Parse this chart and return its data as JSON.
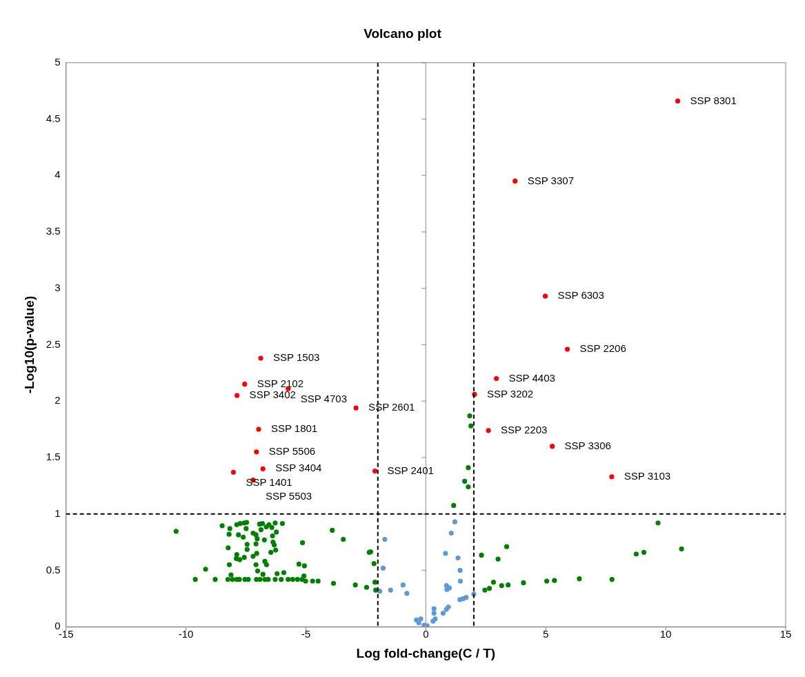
{
  "chart_data": {
    "type": "scatter",
    "title": "Volcano plot",
    "xlabel": "Log fold-change(C / T)",
    "ylabel": "-Log10(p-value)",
    "xlim": [
      -15,
      15
    ],
    "xticks": [
      -15,
      -10,
      -5,
      0,
      5,
      10,
      15
    ],
    "ylim": [
      0,
      5
    ],
    "yticks": [
      0,
      0.5,
      1,
      1.5,
      2,
      2.5,
      3,
      3.5,
      4,
      4.5,
      5
    ],
    "grid": false,
    "legend": false,
    "marker": "circle",
    "series": [
      {
        "color": "#ff0000",
        "x": [
          10.5,
          3.72,
          4.98,
          5.9,
          2.94,
          2.03,
          2.61,
          5.27,
          7.75,
          -6.88,
          -7.55,
          -5.74,
          -7.87,
          -2.91,
          -6.97,
          -7.06,
          -6.79,
          -8.02,
          -7.2,
          -2.12
        ],
        "values": [
          4.66,
          3.95,
          2.93,
          2.46,
          2.2,
          2.06,
          1.74,
          1.6,
          1.33,
          2.38,
          2.15,
          2.11,
          2.05,
          1.94,
          1.75,
          1.55,
          1.4,
          1.37,
          1.3,
          1.38
        ]
      },
      {
        "color": "#008000",
        "x": [
          1.83,
          1.88,
          1.77,
          1.62,
          1.77,
          1.16,
          -8.49,
          -8.17,
          -8.2,
          -8.24,
          -8.19,
          -9.18,
          -9.61,
          -8.78,
          -8.12,
          -8.25,
          -8.06,
          -7.88,
          -7.77,
          -7.54,
          -7.4,
          -7.06,
          -6.91,
          -6.71,
          -6.57,
          -6.28,
          -6.03,
          -5.74,
          -5.55,
          -5.35,
          -5.16,
          -5.01,
          -4.72,
          -4.49,
          -7.88,
          -7.74,
          -7.57,
          -7.47,
          -7.49,
          -6.93,
          -6.81,
          -6.87,
          -6.65,
          -6.54,
          -6.42,
          -6.28,
          -6.23,
          -5.98,
          -7.81,
          -7.61,
          -7.2,
          -7.08,
          -7.03,
          -6.73,
          -6.39,
          -6.37,
          -6.32,
          -7.45,
          -7.45,
          -7.08,
          -7.05,
          -7.2,
          -6.46,
          -6.26,
          -7.88,
          -7.9,
          -7.76,
          -7.57,
          -7.08,
          -6.71,
          -6.64,
          -7.01,
          -6.79,
          -6.2,
          -5.92,
          -5.14,
          -5.29,
          -5.06,
          -5.08,
          -3.9,
          -3.44,
          -3.85,
          -2.36,
          -2.3,
          -2.16,
          -2.94,
          -2.47,
          -2.12,
          -2.09,
          2.32,
          2.46,
          2.65,
          3.37,
          3.01,
          2.82,
          3.16,
          3.43,
          4.07,
          5.04,
          5.36,
          6.4,
          7.76,
          8.77,
          9.09,
          9.68,
          10.66,
          -10.41
        ],
        "values": [
          1.87,
          1.78,
          1.41,
          1.29,
          1.24,
          1.075,
          0.895,
          0.87,
          0.82,
          0.7,
          0.55,
          0.51,
          0.42,
          0.42,
          0.46,
          0.42,
          0.42,
          0.42,
          0.42,
          0.42,
          0.42,
          0.42,
          0.42,
          0.42,
          0.42,
          0.42,
          0.42,
          0.42,
          0.42,
          0.42,
          0.42,
          0.405,
          0.405,
          0.405,
          0.905,
          0.915,
          0.92,
          0.925,
          0.87,
          0.91,
          0.915,
          0.86,
          0.885,
          0.905,
          0.88,
          0.92,
          0.84,
          0.915,
          0.815,
          0.795,
          0.83,
          0.815,
          0.78,
          0.77,
          0.805,
          0.75,
          0.725,
          0.73,
          0.685,
          0.735,
          0.65,
          0.625,
          0.66,
          0.68,
          0.64,
          0.605,
          0.595,
          0.615,
          0.55,
          0.58,
          0.55,
          0.495,
          0.465,
          0.47,
          0.48,
          0.745,
          0.555,
          0.54,
          0.45,
          0.855,
          0.775,
          0.385,
          0.66,
          0.665,
          0.56,
          0.37,
          0.35,
          0.395,
          0.325,
          0.635,
          0.325,
          0.34,
          0.71,
          0.6,
          0.395,
          0.365,
          0.37,
          0.39,
          0.405,
          0.41,
          0.425,
          0.42,
          0.645,
          0.66,
          0.92,
          0.69,
          0.846
        ]
      },
      {
        "color": "#5b9bd5",
        "x": [
          1.21,
          1.06,
          -1.71,
          0.82,
          1.34,
          -1.78,
          1.43,
          1.44,
          -1.92,
          -1.47,
          -0.95,
          -0.79,
          0.86,
          0.88,
          0.98,
          2.0,
          1.42,
          1.56,
          1.68,
          0.94,
          0.86,
          0.72,
          0.34,
          0.34,
          0.39,
          0.3,
          -0.39,
          -0.21,
          -0.29,
          -0.07,
          0.05
        ],
        "values": [
          0.93,
          0.83,
          0.775,
          0.65,
          0.61,
          0.52,
          0.5,
          0.405,
          0.315,
          0.325,
          0.37,
          0.295,
          0.365,
          0.33,
          0.345,
          0.29,
          0.24,
          0.25,
          0.26,
          0.175,
          0.155,
          0.12,
          0.16,
          0.12,
          0.07,
          0.05,
          0.06,
          0.07,
          0.035,
          0.015,
          0.01
        ]
      }
    ],
    "ref_lines": [
      {
        "axis": "x",
        "value": -2,
        "color": "#000000",
        "line_style": "dashed"
      },
      {
        "axis": "x",
        "value": 2,
        "color": "#000000",
        "line_style": "dashed"
      },
      {
        "axis": "y",
        "value": 1,
        "color": "#000000",
        "line_style": "dashed"
      }
    ],
    "annotations": [
      {
        "text": "SSP 8301",
        "x": 10.5,
        "y": 4.66
      },
      {
        "text": "SSP 3307",
        "x": 3.72,
        "y": 3.95
      },
      {
        "text": "SSP 6303",
        "x": 4.98,
        "y": 2.93
      },
      {
        "text": "SSP 2206",
        "x": 5.9,
        "y": 2.46
      },
      {
        "text": "SSP 4403",
        "x": 2.94,
        "y": 2.2
      },
      {
        "text": "SSP 3202",
        "x": 2.03,
        "y": 2.06
      },
      {
        "text": "SSP 2203",
        "x": 2.61,
        "y": 1.74
      },
      {
        "text": "SSP 3306",
        "x": 5.27,
        "y": 1.6
      },
      {
        "text": "SSP 3103",
        "x": 7.75,
        "y": 1.33
      },
      {
        "text": "SSP 1503",
        "x": -6.88,
        "y": 2.38
      },
      {
        "text": "SSP 2102",
        "x": -7.55,
        "y": 2.15
      },
      {
        "text": "SSP 4703",
        "x": -5.74,
        "y": 2.11
      },
      {
        "text": "SSP 3402",
        "x": -7.87,
        "y": 2.05
      },
      {
        "text": "SSP 2601",
        "x": -2.91,
        "y": 1.94
      },
      {
        "text": "SSP 1801",
        "x": -6.97,
        "y": 1.75
      },
      {
        "text": "SSP 5506",
        "x": -7.06,
        "y": 1.55
      },
      {
        "text": "SSP 3404",
        "x": -6.79,
        "y": 1.4
      },
      {
        "text": "SSP 1401",
        "x": -8.02,
        "y": 1.37
      },
      {
        "text": "SSP 5503",
        "x": -7.2,
        "y": 1.3
      },
      {
        "text": "SSP 2401",
        "x": -2.12,
        "y": 1.38
      }
    ]
  }
}
